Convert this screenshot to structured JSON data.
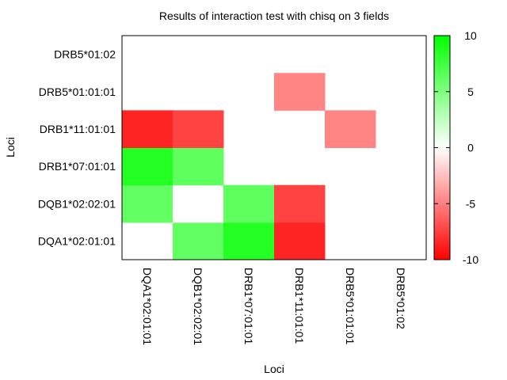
{
  "chart_data": {
    "type": "heatmap",
    "title": "Results of interaction test with chisq on 3 fields",
    "xlabel": "Loci",
    "ylabel": "Loci",
    "x_categories": [
      "DQA1*02:01:01",
      "DQB1*02:02:01",
      "DRB1*07:01:01",
      "DRB1*11:01:01",
      "DRB5*01:01:01",
      "DRB5*01:02"
    ],
    "y_categories": [
      "DQA1*02:01:01",
      "DQB1*02:02:01",
      "DRB1*07:01:01",
      "DRB1*11:01:01",
      "DRB5*01:01:01",
      "DRB5*01:02"
    ],
    "values": [
      [
        0,
        6.2,
        8.6,
        -8.6,
        null,
        null
      ],
      [
        6.2,
        0,
        6.3,
        -7.4,
        null,
        null
      ],
      [
        8.6,
        6.3,
        null,
        null,
        null,
        null
      ],
      [
        -8.6,
        -7.4,
        null,
        null,
        -4.8,
        null
      ],
      [
        null,
        null,
        null,
        -4.8,
        null,
        null
      ],
      [
        null,
        null,
        null,
        null,
        null,
        null
      ]
    ],
    "colorbar": {
      "range": [
        -10,
        10
      ],
      "ticks": [
        "10",
        "5",
        "0",
        "-5",
        "-10"
      ],
      "low_color": "#ff0000",
      "mid_color": "#ffffff",
      "high_color": "#00ff00"
    },
    "grid": false,
    "legend": "colorbar-right"
  }
}
